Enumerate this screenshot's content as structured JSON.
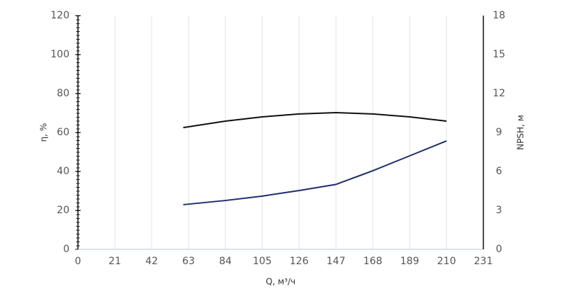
{
  "chart_data": {
    "type": "line",
    "x_label": "Q, м³/ч",
    "y_label": "η, %",
    "y2_label": "NPSH, м",
    "x": [
      60,
      84,
      105,
      126,
      147,
      168,
      189,
      210
    ],
    "series": [
      {
        "color": "#111111",
        "values": [
          62.5,
          65.8,
          68,
          69.5,
          70.2,
          69.5,
          68,
          65.8
        ]
      },
      {
        "color": "#1f2d6b",
        "axis": "y2",
        "values": [
          3.44,
          3.76,
          4.1,
          4.53,
          5.0,
          6.05,
          7.2,
          8.35
        ]
      }
    ],
    "xlim": [
      0,
      231
    ],
    "xticks": [
      0,
      21,
      42,
      63,
      84,
      105,
      126,
      147,
      168,
      189,
      210,
      231
    ],
    "ylim": [
      0,
      120
    ],
    "yticks": [
      0,
      20,
      40,
      60,
      80,
      100,
      120
    ],
    "y2lim": [
      0,
      18
    ],
    "y2ticks": [
      0,
      3,
      6,
      9,
      12,
      15,
      18
    ],
    "grid": true
  }
}
